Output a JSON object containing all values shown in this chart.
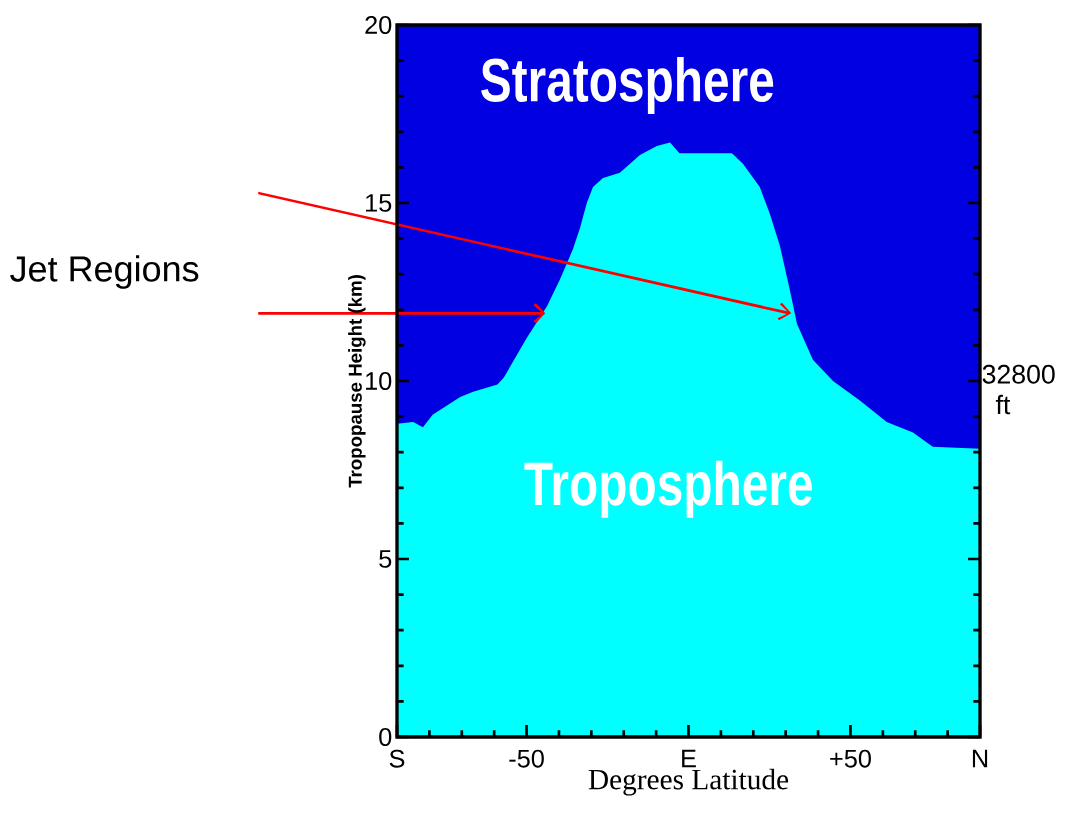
{
  "chart_data": {
    "type": "area",
    "xlabel": "Degrees Latitude",
    "ylabel": "Tropopause Height (km)",
    "x": [
      -90,
      -85,
      -82,
      -79,
      -70.5,
      -66.5,
      -59,
      -57,
      -50,
      -43.7,
      -39.7,
      -35.7,
      -33.5,
      -31.4,
      -29.5,
      -26.4,
      -21.2,
      -15,
      -9.8,
      -5.7,
      -2.8,
      13.4,
      16.8,
      22,
      25.1,
      28.2,
      31.3,
      33.5,
      38.4,
      44.6,
      52.9,
      61.2,
      69.3,
      75.4,
      90
    ],
    "series": [
      {
        "color": "#00ffff",
        "values": [
          8.8,
          8.85,
          8.7,
          9.05,
          9.55,
          9.7,
          9.9,
          10.1,
          11.2,
          12.1,
          12.85,
          13.7,
          14.3,
          15.0,
          15.45,
          15.7,
          15.85,
          16.35,
          16.6,
          16.7,
          16.4,
          16.4,
          16.1,
          15.45,
          14.7,
          13.8,
          12.55,
          11.6,
          10.6,
          10.0,
          9.45,
          8.85,
          8.55,
          8.15,
          8.1
        ]
      }
    ],
    "xlim": [
      -90,
      90
    ],
    "ylim": [
      0,
      20
    ],
    "xticks": [
      {
        "value": -90,
        "label": "S"
      },
      {
        "value": -80,
        "label": null
      },
      {
        "value": -70,
        "label": null
      },
      {
        "value": -60,
        "label": null
      },
      {
        "value": -50,
        "label": "-50"
      },
      {
        "value": -40,
        "label": null
      },
      {
        "value": -30,
        "label": null
      },
      {
        "value": -20,
        "label": null
      },
      {
        "value": -10,
        "label": null
      },
      {
        "value": 0,
        "label": "E"
      },
      {
        "value": 10,
        "label": null
      },
      {
        "value": 20,
        "label": null
      },
      {
        "value": 30,
        "label": null
      },
      {
        "value": 40,
        "label": null
      },
      {
        "value": 50,
        "label": "+50"
      },
      {
        "value": 60,
        "label": null
      },
      {
        "value": 70,
        "label": null
      },
      {
        "value": 80,
        "label": null
      },
      {
        "value": 90,
        "label": "N"
      }
    ],
    "yticks": [
      0,
      {
        "value": 1,
        "label": null
      },
      {
        "value": 2,
        "label": null
      },
      {
        "value": 3,
        "label": null
      },
      {
        "value": 4,
        "label": null
      },
      5,
      {
        "value": 6,
        "label": null
      },
      {
        "value": 7,
        "label": null
      },
      {
        "value": 8,
        "label": null
      },
      {
        "value": 9,
        "label": null
      },
      10,
      {
        "value": 11,
        "label": null
      },
      {
        "value": 12,
        "label": null
      },
      {
        "value": 13,
        "label": null
      },
      {
        "value": 14,
        "label": null
      },
      15,
      {
        "value": 16,
        "label": null
      },
      {
        "value": 17,
        "label": null
      },
      {
        "value": 18,
        "label": null
      },
      {
        "value": 19,
        "label": null
      },
      20
    ],
    "bands": [
      {
        "axis": "y",
        "from": 8,
        "to": 20,
        "color": "#0000e0"
      }
    ],
    "annotations": [
      "Stratosphere",
      "Troposphere",
      "Jet Regions",
      "32800 ft"
    ]
  }
}
